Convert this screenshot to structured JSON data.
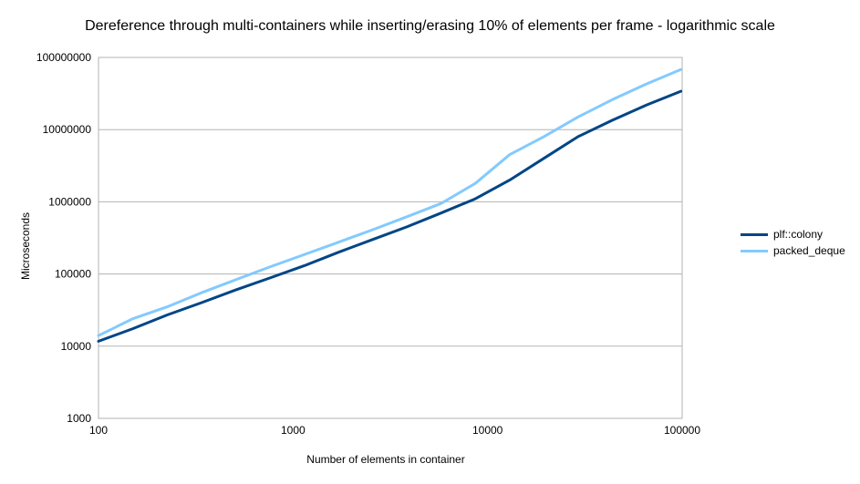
{
  "chart_data": {
    "type": "line",
    "title": "Dereference through multi-containers while inserting/erasing 10% of elements per frame - logarithmic scale",
    "xlabel": "Number of elements in container",
    "ylabel": "Microseconds",
    "x_scale": "log",
    "y_scale": "log",
    "xlim": [
      100,
      100000
    ],
    "ylim": [
      1000,
      100000000
    ],
    "x_ticks": [
      "100",
      "1000",
      "10000",
      "100000"
    ],
    "y_ticks": [
      "1000",
      "10000",
      "100000",
      "1000000",
      "10000000",
      "100000000"
    ],
    "grid": true,
    "legend_position": "right",
    "series": [
      {
        "name": "plf::colony",
        "color": "#004586",
        "x": [
          100,
          150,
          225,
          338,
          506,
          759,
          1139,
          1709,
          2563,
          3844,
          5767,
          8650,
          12975,
          19462,
          29193,
          43789,
          65684,
          98526
        ],
        "values": [
          11700,
          17500,
          27000,
          40000,
          60000,
          88000,
          130000,
          200000,
          300000,
          450000,
          700000,
          1100000,
          2000000,
          4000000,
          8000000,
          13500000,
          22000000,
          34000000
        ]
      },
      {
        "name": "packed_deque",
        "color": "#83caff",
        "x": [
          100,
          150,
          225,
          338,
          506,
          759,
          1139,
          1709,
          2563,
          3844,
          5767,
          8650,
          12975,
          19462,
          29193,
          43789,
          65684,
          98526
        ],
        "values": [
          14000,
          24000,
          35000,
          55000,
          83000,
          125000,
          185000,
          275000,
          410000,
          620000,
          950000,
          1800000,
          4500000,
          8000000,
          15000000,
          26000000,
          43000000,
          68000000
        ]
      }
    ]
  }
}
